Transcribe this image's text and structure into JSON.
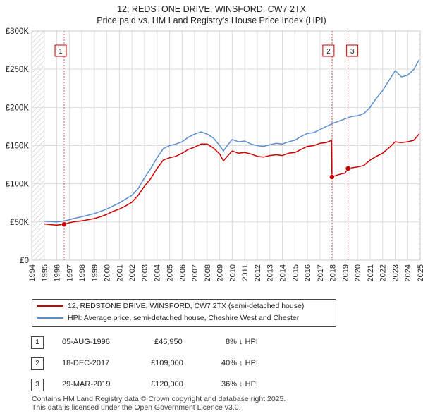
{
  "title_line1": "12, REDSTONE DRIVE, WINSFORD, CW7 2TX",
  "title_line2": "Price paid vs. HM Land Registry's House Price Index (HPI)",
  "colors": {
    "property": "#cc0000",
    "hpi": "#5b8fd0",
    "grid": "#dddddd",
    "hatch": "#bbbbbb",
    "vline": "#e06060"
  },
  "chart_data": {
    "type": "line",
    "title": "12, REDSTONE DRIVE, WINSFORD, CW7 2TX — Price paid vs. HM Land Registry's House Price Index (HPI)",
    "xlabel": "",
    "ylabel": "",
    "xlim": [
      1994,
      2025
    ],
    "ylim": [
      0,
      300000
    ],
    "y_ticks": [
      0,
      50000,
      100000,
      150000,
      200000,
      250000,
      300000
    ],
    "y_tick_labels": [
      "£0",
      "£50K",
      "£100K",
      "£150K",
      "£200K",
      "£250K",
      "£300K"
    ],
    "x_ticks": [
      1994,
      1995,
      1996,
      1997,
      1998,
      1999,
      2000,
      2001,
      2002,
      2003,
      2004,
      2005,
      2006,
      2007,
      2008,
      2009,
      2010,
      2011,
      2012,
      2013,
      2014,
      2015,
      2016,
      2017,
      2018,
      2019,
      2020,
      2021,
      2022,
      2023,
      2024,
      2025
    ],
    "x_tick_labels": [
      "1994",
      "1995",
      "1996",
      "1997",
      "1998",
      "1999",
      "2000",
      "2001",
      "2002",
      "2003",
      "2004",
      "2005",
      "2006",
      "2007",
      "2008",
      "2009",
      "2010",
      "2011",
      "2012",
      "2013",
      "2014",
      "2015",
      "2016",
      "2017",
      "2018",
      "2019",
      "2020",
      "2021",
      "2022",
      "2023",
      "2024",
      "2025"
    ],
    "hatched_ranges": [
      [
        1994,
        1995
      ],
      [
        2024.9,
        2025
      ]
    ],
    "series": [
      {
        "name": "12, REDSTONE DRIVE, WINSFORD, CW7 2TX (semi-detached house)",
        "x": [
          1995.0,
          1995.5,
          1996.0,
          1996.59,
          1997.0,
          1997.5,
          1998.0,
          1998.5,
          1999.0,
          1999.5,
          2000.0,
          2000.5,
          2001.0,
          2001.5,
          2002.0,
          2002.5,
          2003.0,
          2003.5,
          2004.0,
          2004.5,
          2005.0,
          2005.5,
          2006.0,
          2006.5,
          2007.0,
          2007.5,
          2008.0,
          2008.5,
          2009.0,
          2009.3,
          2009.6,
          2010.0,
          2010.5,
          2011.0,
          2011.5,
          2012.0,
          2012.5,
          2013.0,
          2013.5,
          2014.0,
          2014.5,
          2015.0,
          2015.5,
          2016.0,
          2016.5,
          2017.0,
          2017.5,
          2017.93,
          2017.96,
          2018.3,
          2018.7,
          2019.0,
          2019.24,
          2019.6,
          2020.0,
          2020.5,
          2021.0,
          2021.5,
          2022.0,
          2022.5,
          2023.0,
          2023.5,
          2024.0,
          2024.5,
          2024.9
        ],
        "values": [
          47500,
          46500,
          46000,
          46950,
          49000,
          50500,
          51500,
          53000,
          54500,
          57000,
          60000,
          64000,
          67000,
          71000,
          76000,
          85000,
          97000,
          107000,
          120000,
          131000,
          134000,
          136000,
          140000,
          145000,
          148000,
          152000,
          152000,
          147000,
          139000,
          130000,
          136000,
          143000,
          140000,
          141000,
          139000,
          136000,
          135000,
          137000,
          138000,
          137000,
          140000,
          141000,
          145000,
          149000,
          150000,
          153000,
          154000,
          157000,
          109000,
          111000,
          113000,
          114000,
          120000,
          121000,
          122000,
          124000,
          131000,
          136000,
          140000,
          147000,
          155000,
          154000,
          155000,
          157000,
          165000
        ]
      },
      {
        "name": "HPI: Average price, semi-detached house, Cheshire West and Chester",
        "x": [
          1995.0,
          1995.5,
          1996.0,
          1996.5,
          1997.0,
          1997.5,
          1998.0,
          1998.5,
          1999.0,
          1999.5,
          2000.0,
          2000.5,
          2001.0,
          2001.5,
          2002.0,
          2002.5,
          2003.0,
          2003.5,
          2004.0,
          2004.5,
          2005.0,
          2005.5,
          2006.0,
          2006.5,
          2007.0,
          2007.5,
          2008.0,
          2008.5,
          2009.0,
          2009.3,
          2009.6,
          2010.0,
          2010.5,
          2011.0,
          2011.5,
          2012.0,
          2012.5,
          2013.0,
          2013.5,
          2014.0,
          2014.5,
          2015.0,
          2015.5,
          2016.0,
          2016.5,
          2017.0,
          2017.5,
          2018.0,
          2018.5,
          2019.0,
          2019.5,
          2020.0,
          2020.5,
          2021.0,
          2021.5,
          2022.0,
          2022.5,
          2023.0,
          2023.5,
          2024.0,
          2024.5,
          2024.9
        ],
        "values": [
          51000,
          50500,
          50000,
          51000,
          53000,
          55000,
          57000,
          59000,
          61000,
          64000,
          67000,
          71000,
          75000,
          80000,
          85000,
          94000,
          108000,
          120000,
          134000,
          146000,
          150000,
          152000,
          155000,
          161000,
          165000,
          168000,
          165000,
          160000,
          150000,
          143000,
          150000,
          158000,
          155000,
          156000,
          152000,
          150000,
          149000,
          151000,
          153000,
          152000,
          155000,
          157000,
          162000,
          166000,
          167000,
          171000,
          175000,
          179000,
          182000,
          185000,
          188000,
          189000,
          192000,
          200000,
          212000,
          222000,
          235000,
          248000,
          240000,
          242000,
          250000,
          262000
        ]
      }
    ],
    "markers": [
      {
        "label": "1",
        "x": 1996.59,
        "y": 46950
      },
      {
        "label": "2",
        "x": 2017.96,
        "y": 109000
      },
      {
        "label": "3",
        "x": 2019.24,
        "y": 120000
      }
    ]
  },
  "legend": {
    "property_label": "12, REDSTONE DRIVE, WINSFORD, CW7 2TX (semi-detached house)",
    "hpi_label": "HPI: Average price, semi-detached house, Cheshire West and Chester"
  },
  "transactions": [
    {
      "num": "1",
      "date": "05-AUG-1996",
      "price": "£46,950",
      "hpi": "8% ↓ HPI"
    },
    {
      "num": "2",
      "date": "18-DEC-2017",
      "price": "£109,000",
      "hpi": "40% ↓ HPI"
    },
    {
      "num": "3",
      "date": "29-MAR-2019",
      "price": "£120,000",
      "hpi": "36% ↓ HPI"
    }
  ],
  "footer": {
    "line1": "Contains HM Land Registry data © Crown copyright and database right 2025.",
    "line2": "This data is licensed under the Open Government Licence v3.0."
  }
}
